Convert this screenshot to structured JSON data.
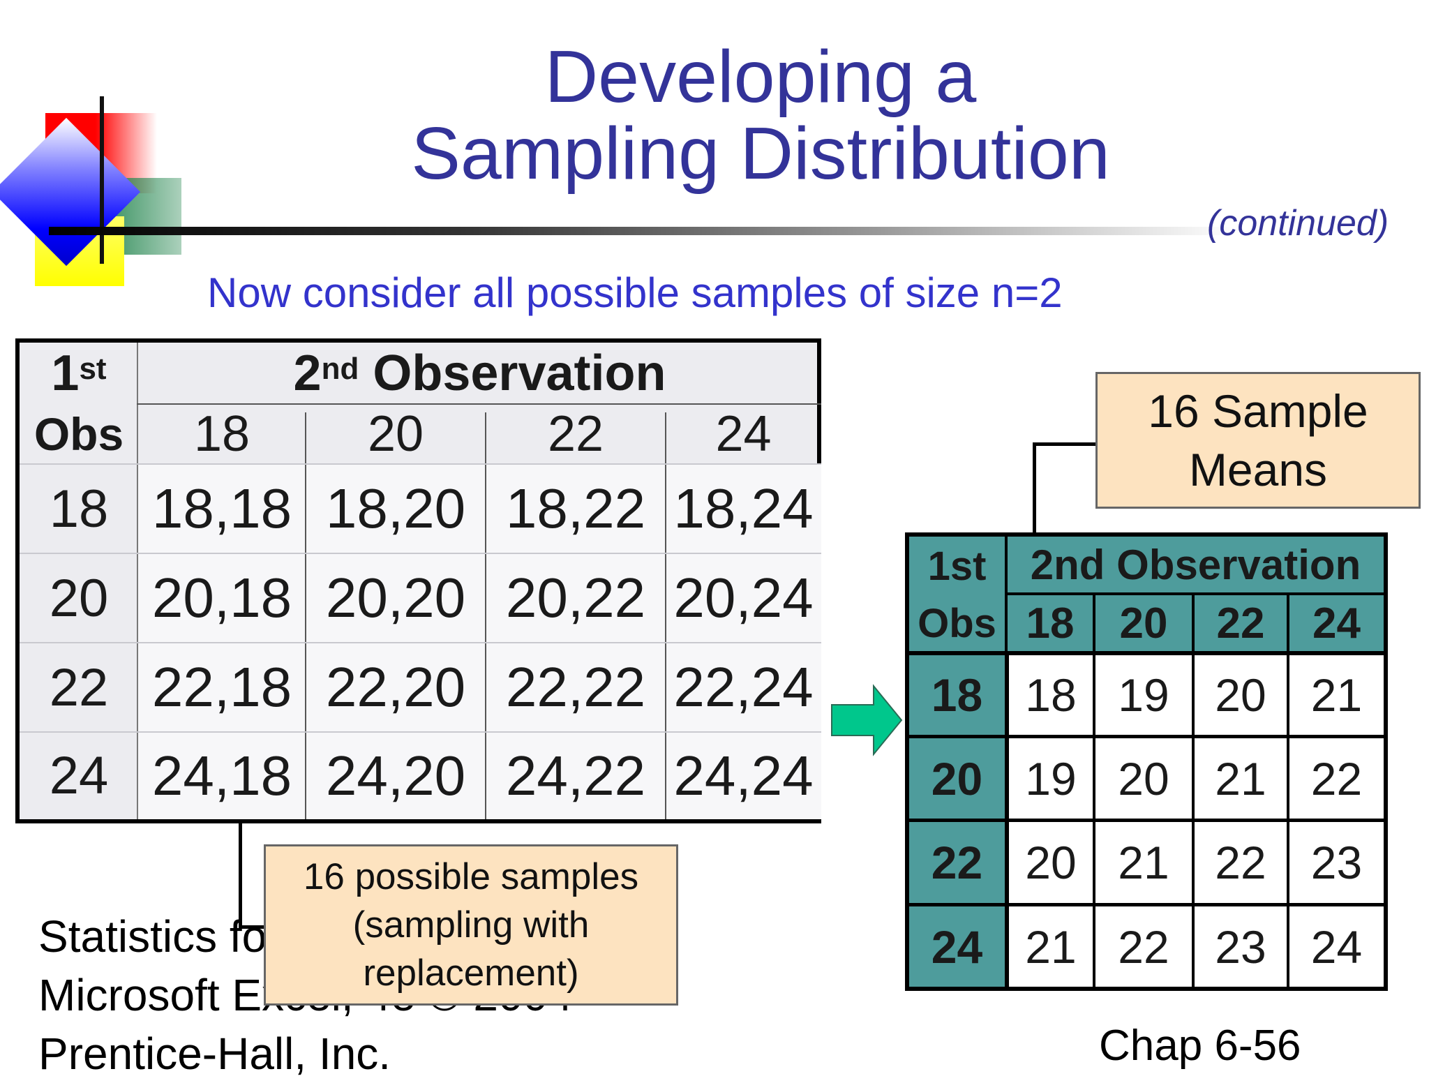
{
  "title": {
    "line1": "Developing a",
    "line2": "Sampling Distribution"
  },
  "continued": "(continued)",
  "subtitle": "Now consider all possible samples of size n=2",
  "left_table": {
    "corner_1st": "1",
    "corner_1st_sup": "st",
    "header_2nd": "2",
    "header_2nd_sup": "nd",
    "header_observation": " Observation",
    "obs_label": "Obs",
    "columns": [
      "18",
      "20",
      "22",
      "24"
    ],
    "rows": [
      {
        "label": "18",
        "cells": [
          "18,18",
          "18,20",
          "18,22",
          "18,24"
        ]
      },
      {
        "label": "20",
        "cells": [
          "20,18",
          "20,20",
          "20,22",
          "20,24"
        ]
      },
      {
        "label": "22",
        "cells": [
          "22,18",
          "22,20",
          "22,22",
          "22,24"
        ]
      },
      {
        "label": "24",
        "cells": [
          "24,18",
          "24,20",
          "24,22",
          "24,24"
        ]
      }
    ]
  },
  "callout_samples": {
    "line1": "16 possible samples",
    "line2": "(sampling with",
    "line3": "replacement)"
  },
  "callout_means": {
    "line1": "16 Sample",
    "line2": "Means"
  },
  "right_table": {
    "corner_1st": "1st",
    "obs_label": "Obs",
    "header": "2nd Observation",
    "columns": [
      "18",
      "20",
      "22",
      "24"
    ],
    "rows": [
      {
        "label": "18",
        "cells": [
          "18",
          "19",
          "20",
          "21"
        ]
      },
      {
        "label": "20",
        "cells": [
          "19",
          "20",
          "21",
          "22"
        ]
      },
      {
        "label": "22",
        "cells": [
          "20",
          "21",
          "22",
          "23"
        ]
      },
      {
        "label": "24",
        "cells": [
          "21",
          "22",
          "23",
          "24"
        ]
      }
    ]
  },
  "footer": {
    "line1": "Statistics for Managers Using",
    "line2": "Microsoft Excel, 4e © 2004",
    "line3": "Prentice-Hall, Inc."
  },
  "chap_number": "Chap 6-56",
  "colors": {
    "title": "#333399",
    "subtitle": "#3333cc",
    "teal": "#4e9c9c",
    "callout": "#fde3c0",
    "arrow": "#00c78c"
  },
  "icons": {
    "logo": "decorative-squares-logo",
    "arrow": "right-arrow-icon"
  }
}
